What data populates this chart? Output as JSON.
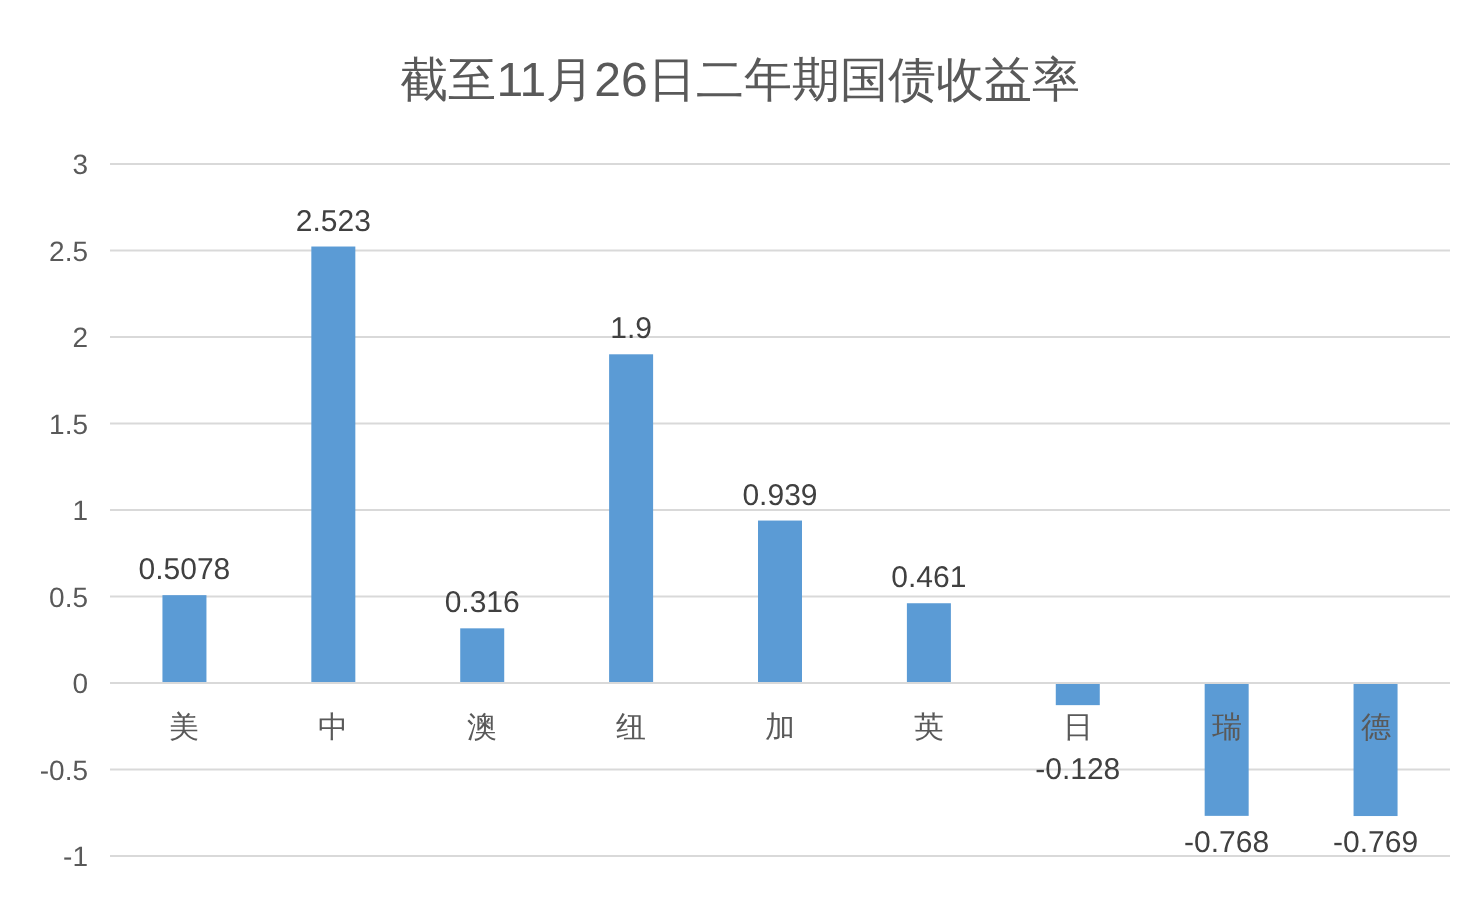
{
  "chart_data": {
    "type": "bar",
    "title": "截至11月26日二年期国债收益率",
    "categories": [
      "美",
      "中",
      "澳",
      "纽",
      "加",
      "英",
      "日",
      "瑞",
      "德"
    ],
    "values": [
      0.5078,
      2.523,
      0.316,
      1.9,
      0.939,
      0.461,
      -0.128,
      -0.768,
      -0.769
    ],
    "color": "#5b9bd5",
    "ylim": [
      -1,
      3
    ],
    "yticks": [
      -1,
      -0.5,
      0,
      0.5,
      1,
      1.5,
      2,
      2.5,
      3
    ],
    "grid": "y",
    "data_labels": true
  }
}
